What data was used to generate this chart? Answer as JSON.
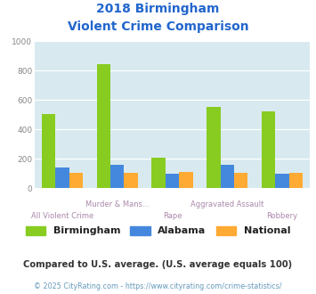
{
  "title_line1": "2018 Birmingham",
  "title_line2": "Violent Crime Comparison",
  "categories": [
    "All Violent Crime",
    "Murder & Mans...",
    "Rape",
    "Aggravated Assault",
    "Robbery"
  ],
  "birmingham": [
    505,
    845,
    205,
    550,
    520
  ],
  "alabama": [
    140,
    158,
    100,
    158,
    100
  ],
  "national": [
    103,
    103,
    108,
    103,
    105
  ],
  "bar_colors": {
    "birmingham": "#88cc22",
    "alabama": "#4488dd",
    "national": "#ffaa33"
  },
  "ylim": [
    0,
    1000
  ],
  "yticks": [
    0,
    200,
    400,
    600,
    800,
    1000
  ],
  "plot_bg": "#d8eaf0",
  "title_color": "#2266cc",
  "grid_color": "#ffffff",
  "legend_labels": [
    "Birmingham",
    "Alabama",
    "National"
  ],
  "xtick_color": "#aa88aa",
  "ytick_color": "#888888",
  "footnote1": "Compared to U.S. average. (U.S. average equals 100)",
  "footnote2": "© 2025 CityRating.com - https://www.cityrating.com/crime-statistics/",
  "footnote1_color": "#333333",
  "footnote2_color": "#6699bb"
}
